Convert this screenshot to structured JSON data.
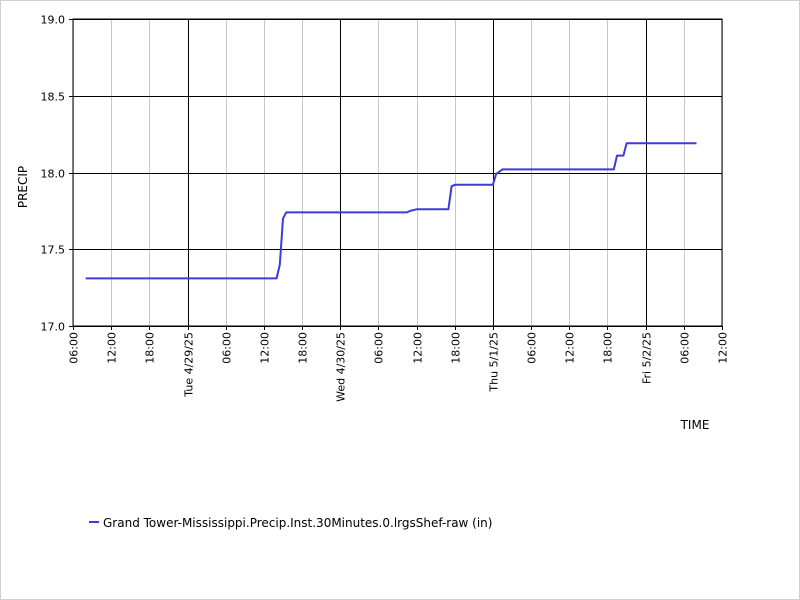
{
  "chart_data": {
    "type": "line",
    "title": "",
    "xlabel": "TIME",
    "ylabel": "PRECIP",
    "ylim": [
      17.0,
      19.0
    ],
    "y_ticks": [
      "17.0",
      "17.5",
      "18.0",
      "18.5",
      "19.0"
    ],
    "x_range": [
      "2025-04-28 06:00",
      "2025-05-02 12:00"
    ],
    "x_ticks": [
      {
        "t": "2025-04-28 06:00",
        "label": "06:00",
        "major": false
      },
      {
        "t": "2025-04-28 12:00",
        "label": "12:00",
        "major": false
      },
      {
        "t": "2025-04-28 18:00",
        "label": "18:00",
        "major": false
      },
      {
        "t": "2025-04-29 00:00",
        "label": "Tue 4/29/25",
        "major": true
      },
      {
        "t": "2025-04-29 06:00",
        "label": "06:00",
        "major": false
      },
      {
        "t": "2025-04-29 12:00",
        "label": "12:00",
        "major": false
      },
      {
        "t": "2025-04-29 18:00",
        "label": "18:00",
        "major": false
      },
      {
        "t": "2025-04-30 00:00",
        "label": "Wed 4/30/25",
        "major": true
      },
      {
        "t": "2025-04-30 06:00",
        "label": "06:00",
        "major": false
      },
      {
        "t": "2025-04-30 12:00",
        "label": "12:00",
        "major": false
      },
      {
        "t": "2025-04-30 18:00",
        "label": "18:00",
        "major": false
      },
      {
        "t": "2025-05-01 00:00",
        "label": "Thu 5/1/25",
        "major": true
      },
      {
        "t": "2025-05-01 06:00",
        "label": "06:00",
        "major": false
      },
      {
        "t": "2025-05-01 12:00",
        "label": "12:00",
        "major": false
      },
      {
        "t": "2025-05-01 18:00",
        "label": "18:00",
        "major": false
      },
      {
        "t": "2025-05-02 00:00",
        "label": "Fri 5/2/25",
        "major": true
      },
      {
        "t": "2025-05-02 06:00",
        "label": "06:00",
        "major": false
      },
      {
        "t": "2025-05-02 12:00",
        "label": "12:00",
        "major": false
      }
    ],
    "grid": true,
    "legend_position": "bottom-left",
    "series": [
      {
        "name": "Grand Tower-Mississippi.Precip.Inst.30Minutes.0.lrgsShef-raw (in)",
        "color": "#3c3cd8",
        "points": [
          [
            "2025-04-28 08:00",
            17.31
          ],
          [
            "2025-04-29 14:00",
            17.31
          ],
          [
            "2025-04-29 14:30",
            17.4
          ],
          [
            "2025-04-29 15:00",
            17.7
          ],
          [
            "2025-04-29 15:30",
            17.74
          ],
          [
            "2025-04-30 10:30",
            17.74
          ],
          [
            "2025-04-30 11:00",
            17.75
          ],
          [
            "2025-04-30 12:00",
            17.76
          ],
          [
            "2025-04-30 17:00",
            17.76
          ],
          [
            "2025-04-30 17:30",
            17.91
          ],
          [
            "2025-04-30 18:00",
            17.92
          ],
          [
            "2025-05-01 00:00",
            17.92
          ],
          [
            "2025-05-01 00:30",
            17.99
          ],
          [
            "2025-05-01 01:30",
            18.02
          ],
          [
            "2025-05-01 19:00",
            18.02
          ],
          [
            "2025-05-01 19:30",
            18.11
          ],
          [
            "2025-05-01 20:30",
            18.11
          ],
          [
            "2025-05-01 21:00",
            18.19
          ],
          [
            "2025-05-02 08:00",
            18.19
          ]
        ]
      }
    ]
  }
}
